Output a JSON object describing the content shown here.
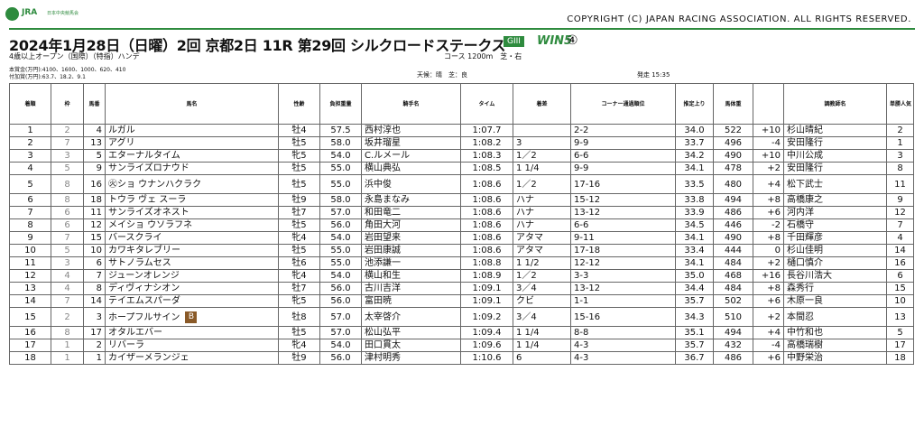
{
  "header": {
    "logo_text": "JRA",
    "logo_sub": "日本中央競馬会",
    "copyright": "COPYRIGHT (C) JAPAN RACING ASSOCIATION. ALL RIGHTS RESERVED.",
    "race_title": "2024年1月28日（日曜）2回 京都2日 11R 第29回 シルクロードステークス",
    "grade": "GIII",
    "win5": "WIN5",
    "win5_number": "④",
    "conditions": "4歳以上オープン（国際）（特指）ハンデ",
    "course": "コース 1200m　芝・右",
    "prize_line1": "本賞金(万円):4100、1600、1000、620、410",
    "prize_line2": "付加賞(万円):63.7、18.2、9.1",
    "weather": "天候：晴　芝：良",
    "post_time": "発走 15:35",
    "accent_color": "#2e8b3e"
  },
  "columns": [
    "着順",
    "枠",
    "馬番",
    "馬名",
    "性齢",
    "負担重量",
    "騎手名",
    "タイム",
    "着差",
    "コーナー通過順位",
    "推定上り",
    "馬体重",
    "",
    "調教師名",
    "単勝人気"
  ],
  "rows": [
    {
      "pos": "1",
      "frame": "2",
      "num": "4",
      "horse": "ルガル",
      "sex": "牡4",
      "weight": "57.5",
      "jockey": "西村淳也",
      "time": "1:07.7",
      "margin": "",
      "corner": "2-2",
      "last3f": "34.0",
      "body": "522",
      "diff": "+10",
      "trainer": "杉山晴紀",
      "pop": "2"
    },
    {
      "pos": "2",
      "frame": "7",
      "num": "13",
      "horse": "アグリ",
      "sex": "牡5",
      "weight": "58.0",
      "jockey": "坂井瑠星",
      "time": "1:08.2",
      "margin": "3",
      "corner": "9-9",
      "last3f": "33.7",
      "body": "496",
      "diff": "-4",
      "trainer": "安田隆行",
      "pop": "1"
    },
    {
      "pos": "3",
      "frame": "3",
      "num": "5",
      "horse": "エターナルタイム",
      "sex": "牝5",
      "weight": "54.0",
      "jockey": "C.ルメール",
      "time": "1:08.3",
      "margin": "1／2",
      "corner": "6-6",
      "last3f": "34.2",
      "body": "490",
      "diff": "+10",
      "trainer": "中川公成",
      "pop": "3"
    },
    {
      "pos": "4",
      "frame": "5",
      "num": "9",
      "horse": "サンライズロナウド",
      "sex": "牡5",
      "weight": "55.0",
      "jockey": "横山典弘",
      "time": "1:08.5",
      "margin": "1 1/4",
      "corner": "9-9",
      "last3f": "34.1",
      "body": "478",
      "diff": "+2",
      "trainer": "安田隆行",
      "pop": "8"
    },
    {
      "pos": "5",
      "frame": "8",
      "num": "16",
      "horse": "㊋ショ ウナンハクラク",
      "sex": "牡5",
      "weight": "55.0",
      "jockey": "浜中俊",
      "time": "1:08.6",
      "margin": "1／2",
      "corner": "17-16",
      "last3f": "33.5",
      "body": "480",
      "diff": "+4",
      "trainer": "松下武士",
      "pop": "11"
    },
    {
      "pos": "6",
      "frame": "8",
      "num": "18",
      "horse": "トウラ ヴェ スーラ",
      "sex": "牡9",
      "weight": "58.0",
      "jockey": "永島まなみ",
      "time": "1:08.6",
      "margin": "ハナ",
      "corner": "15-12",
      "last3f": "33.8",
      "body": "494",
      "diff": "+8",
      "trainer": "高橋康之",
      "pop": "9"
    },
    {
      "pos": "7",
      "frame": "6",
      "num": "11",
      "horse": "サンライズオネスト",
      "sex": "牡7",
      "weight": "57.0",
      "jockey": "和田竜二",
      "time": "1:08.6",
      "margin": "ハナ",
      "corner": "13-12",
      "last3f": "33.9",
      "body": "486",
      "diff": "+6",
      "trainer": "河内洋",
      "pop": "12"
    },
    {
      "pos": "8",
      "frame": "6",
      "num": "12",
      "horse": "メイショ ウソラフネ",
      "sex": "牡5",
      "weight": "56.0",
      "jockey": "角田大河",
      "time": "1:08.6",
      "margin": "ハナ",
      "corner": "6-6",
      "last3f": "34.5",
      "body": "446",
      "diff": "-2",
      "trainer": "石橋守",
      "pop": "7"
    },
    {
      "pos": "9",
      "frame": "7",
      "num": "15",
      "horse": "バースクライ",
      "sex": "牝4",
      "weight": "54.0",
      "jockey": "岩田望来",
      "time": "1:08.6",
      "margin": "アタマ",
      "corner": "9-11",
      "last3f": "34.1",
      "body": "490",
      "diff": "+8",
      "trainer": "千田輝彦",
      "pop": "4"
    },
    {
      "pos": "10",
      "frame": "5",
      "num": "10",
      "horse": "カワキタレブリー",
      "sex": "牡5",
      "weight": "55.0",
      "jockey": "岩田康誠",
      "time": "1:08.6",
      "margin": "アタマ",
      "corner": "17-18",
      "last3f": "33.4",
      "body": "444",
      "diff": "0",
      "trainer": "杉山佳明",
      "pop": "14"
    },
    {
      "pos": "11",
      "frame": "3",
      "num": "6",
      "horse": "サトノラムセス",
      "sex": "牡6",
      "weight": "55.0",
      "jockey": "池添謙一",
      "time": "1:08.8",
      "margin": "1 1/2",
      "corner": "12-12",
      "last3f": "34.1",
      "body": "484",
      "diff": "+2",
      "trainer": "樋口慎介",
      "pop": "16"
    },
    {
      "pos": "12",
      "frame": "4",
      "num": "7",
      "horse": "ジューンオレンジ",
      "sex": "牝4",
      "weight": "54.0",
      "jockey": "横山和生",
      "time": "1:08.9",
      "margin": "1／2",
      "corner": "3-3",
      "last3f": "35.0",
      "body": "468",
      "diff": "+16",
      "trainer": "長谷川浩大",
      "pop": "6"
    },
    {
      "pos": "13",
      "frame": "4",
      "num": "8",
      "horse": "ディヴィナシオン",
      "sex": "牡7",
      "weight": "56.0",
      "jockey": "古川吉洋",
      "time": "1:09.1",
      "margin": "3／4",
      "corner": "13-12",
      "last3f": "34.4",
      "body": "484",
      "diff": "+8",
      "trainer": "森秀行",
      "pop": "15"
    },
    {
      "pos": "14",
      "frame": "7",
      "num": "14",
      "horse": "テイエムスパーダ",
      "sex": "牝5",
      "weight": "56.0",
      "jockey": "富田暁",
      "time": "1:09.1",
      "margin": "クビ",
      "corner": "1-1",
      "last3f": "35.7",
      "body": "502",
      "diff": "+6",
      "trainer": "木原一良",
      "pop": "10"
    },
    {
      "pos": "15",
      "frame": "2",
      "num": "3",
      "horse": "ホープフルサイン",
      "badge": "B",
      "sex": "牡8",
      "weight": "57.0",
      "jockey": "太宰啓介",
      "time": "1:09.2",
      "margin": "3／4",
      "corner": "15-16",
      "last3f": "34.3",
      "body": "510",
      "diff": "+2",
      "trainer": "本間忍",
      "pop": "13"
    },
    {
      "pos": "16",
      "frame": "8",
      "num": "17",
      "horse": "オタルエバー",
      "sex": "牡5",
      "weight": "57.0",
      "jockey": "松山弘平",
      "time": "1:09.4",
      "margin": "1 1/4",
      "corner": "8-8",
      "last3f": "35.1",
      "body": "494",
      "diff": "+4",
      "trainer": "中竹和也",
      "pop": "5"
    },
    {
      "pos": "17",
      "frame": "1",
      "num": "2",
      "horse": "リバーラ",
      "sex": "牝4",
      "weight": "54.0",
      "jockey": "田口貫太",
      "time": "1:09.6",
      "margin": "1 1/4",
      "corner": "4-3",
      "last3f": "35.7",
      "body": "432",
      "diff": "-4",
      "trainer": "高橋瑞樹",
      "pop": "17"
    },
    {
      "pos": "18",
      "frame": "1",
      "num": "1",
      "horse": "カイザーメランジェ",
      "sex": "牡9",
      "weight": "56.0",
      "jockey": "津村明秀",
      "time": "1:10.6",
      "margin": "6",
      "corner": "4-3",
      "last3f": "36.7",
      "body": "486",
      "diff": "+6",
      "trainer": "中野栄治",
      "pop": "18"
    }
  ]
}
